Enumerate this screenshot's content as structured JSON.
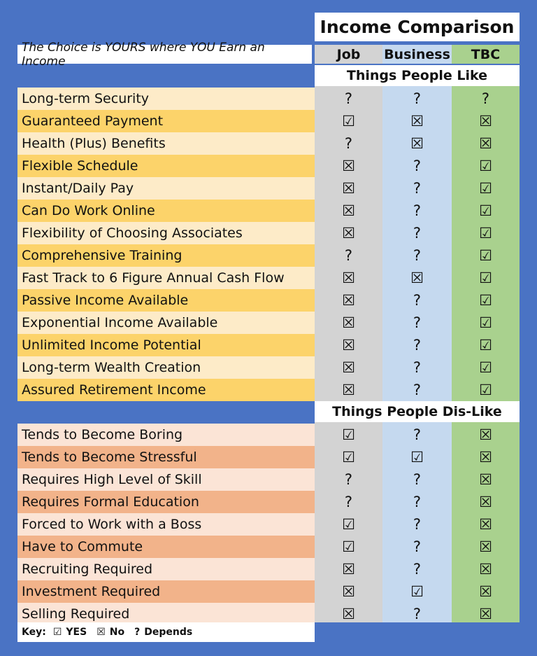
{
  "title": "Income Comparison",
  "tagline": "The Choice is YOURS where YOU Earn an Income",
  "columns": [
    "Job",
    "Business",
    "TBC"
  ],
  "colors": {
    "background": "#4a73c4",
    "job_column": "#d3d3d3",
    "business_column": "#c5d9ef",
    "tbc_column": "#a9d18e",
    "likes_light": "#fdebc8",
    "likes_dark": "#fcd36a",
    "dislikes_light": "#fbe4d6",
    "dislikes_dark": "#f2b38a"
  },
  "likes_title": "Things People Like",
  "likes": [
    {
      "label": "Long-term Security",
      "values": [
        "?",
        "?",
        "?"
      ]
    },
    {
      "label": "Guaranteed Payment",
      "values": [
        "☑",
        "☒",
        "☒"
      ]
    },
    {
      "label": "Health (Plus) Benefits",
      "values": [
        "?",
        "☒",
        "☒"
      ]
    },
    {
      "label": "Flexible Schedule",
      "values": [
        "☒",
        "?",
        "☑"
      ]
    },
    {
      "label": "Instant/Daily Pay",
      "values": [
        "☒",
        "?",
        "☑"
      ]
    },
    {
      "label": "Can Do Work Online",
      "values": [
        "☒",
        "?",
        "☑"
      ]
    },
    {
      "label": "Flexibility of Choosing Associates",
      "values": [
        "☒",
        "?",
        "☑"
      ]
    },
    {
      "label": "Comprehensive Training",
      "values": [
        "?",
        "?",
        "☑"
      ]
    },
    {
      "label": "Fast Track to 6 Figure Annual Cash Flow",
      "values": [
        "☒",
        "☒",
        "☑"
      ]
    },
    {
      "label": "Passive Income Available",
      "values": [
        "☒",
        "?",
        "☑"
      ]
    },
    {
      "label": "Exponential Income Available",
      "values": [
        "☒",
        "?",
        "☑"
      ]
    },
    {
      "label": "Unlimited Income Potential",
      "values": [
        "☒",
        "?",
        "☑"
      ]
    },
    {
      "label": "Long-term Wealth Creation",
      "values": [
        "☒",
        "?",
        "☑"
      ]
    },
    {
      "label": "Assured Retirement Income",
      "values": [
        "☒",
        "?",
        "☑"
      ]
    }
  ],
  "dislikes_title": "Things People Dis-Like",
  "dislikes": [
    {
      "label": "Tends to Become Boring",
      "values": [
        "☑",
        "?",
        "☒"
      ]
    },
    {
      "label": "Tends to Become Stressful",
      "values": [
        "☑",
        "☑",
        "☒"
      ]
    },
    {
      "label": "Requires High Level of Skill",
      "values": [
        "?",
        "?",
        "☒"
      ]
    },
    {
      "label": "Requires Formal Education",
      "values": [
        "?",
        "?",
        "☒"
      ]
    },
    {
      "label": "Forced to Work with a Boss",
      "values": [
        "☑",
        "?",
        "☒"
      ]
    },
    {
      "label": "Have to Commute",
      "values": [
        "☑",
        "?",
        "☒"
      ]
    },
    {
      "label": "Recruiting Required",
      "values": [
        "☒",
        "?",
        "☒"
      ]
    },
    {
      "label": "Investment Required",
      "values": [
        "☒",
        "☑",
        "☒"
      ]
    },
    {
      "label": "Selling Required",
      "values": [
        "☒",
        "?",
        "☒"
      ]
    }
  ],
  "key": {
    "label": "Key:",
    "yes_symbol": "☑",
    "yes_label": "YES",
    "no_symbol": "☒",
    "no_label": "No",
    "depends_symbol": "?",
    "depends_label": "Depends"
  }
}
